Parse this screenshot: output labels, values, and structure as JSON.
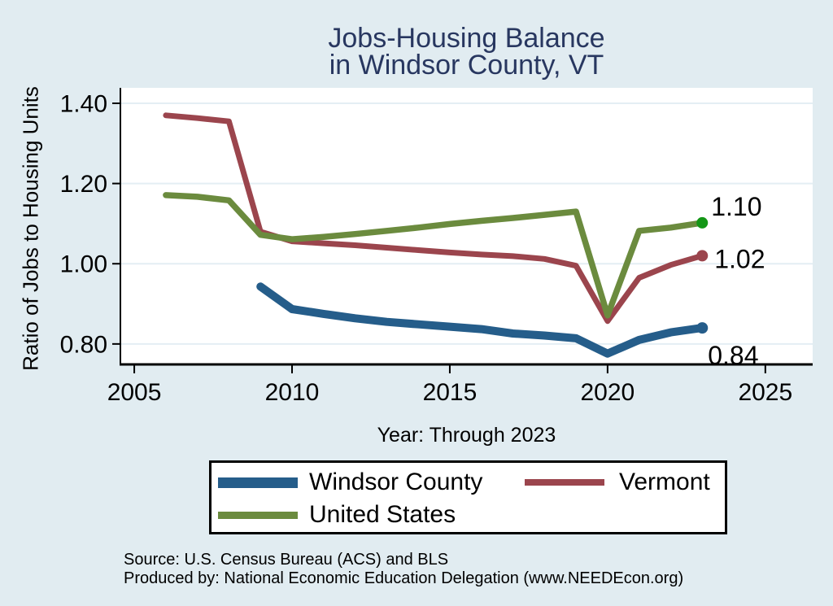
{
  "title": {
    "line1": "Jobs-Housing Balance",
    "line2": "in Windsor County, VT"
  },
  "colors": {
    "figure_bg": "#e1ecf1",
    "plot_bg": "#ffffff",
    "grid": "#e4eef4",
    "axis": "#000000",
    "title": "#283760"
  },
  "chart_data": {
    "type": "line",
    "title": "Jobs-Housing Balance in Windsor County, VT",
    "xlabel": "Year: Through 2023",
    "ylabel": "Ratio of Jobs to Housing Units",
    "xlim": [
      2004.56,
      2026.5
    ],
    "ylim": [
      0.749,
      1.4385
    ],
    "x_ticks": [
      2005,
      2010,
      2015,
      2020,
      2025
    ],
    "x_tick_labels": [
      "2005",
      "2010",
      "2015",
      "2020",
      "2025"
    ],
    "y_ticks": [
      0.8,
      1.0,
      1.2,
      1.4
    ],
    "y_tick_labels": [
      "0.80",
      "1.00",
      "1.20",
      "1.40"
    ],
    "grid": true,
    "legend_position": "bottom",
    "series": [
      {
        "name": "Windsor County",
        "color": "#255d8a",
        "line_width": 10,
        "marker_color": "#255d8a",
        "end_label": {
          "text": "0.84",
          "dx": 7,
          "dy": 45
        },
        "x": [
          2009,
          2010,
          2011,
          2012,
          2013,
          2014,
          2015,
          2016,
          2017,
          2018,
          2019,
          2020,
          2021,
          2022,
          2023
        ],
        "y": [
          0.943,
          0.887,
          0.875,
          0.864,
          0.855,
          0.849,
          0.843,
          0.837,
          0.826,
          0.821,
          0.814,
          0.776,
          0.81,
          0.829,
          0.84
        ]
      },
      {
        "name": "Vermont",
        "color": "#9b454d",
        "line_width": 7,
        "marker_color": "#9b454d",
        "end_label": {
          "text": "1.02",
          "dx": 15,
          "dy": 15
        },
        "x": [
          2006,
          2007,
          2008,
          2009,
          2010,
          2011,
          2012,
          2013,
          2014,
          2015,
          2016,
          2017,
          2018,
          2019,
          2020,
          2021,
          2022,
          2023
        ],
        "y": [
          1.37,
          1.363,
          1.355,
          1.08,
          1.056,
          1.051,
          1.046,
          1.04,
          1.034,
          1.028,
          1.023,
          1.019,
          1.012,
          0.995,
          0.857,
          0.965,
          0.997,
          1.02
        ]
      },
      {
        "name": "United States",
        "color": "#6b8b3e",
        "line_width": 7.5,
        "marker_color": "#149616",
        "end_label": {
          "text": "1.10",
          "dx": 11,
          "dy": -9
        },
        "x": [
          2006,
          2007,
          2008,
          2009,
          2010,
          2011,
          2012,
          2013,
          2014,
          2015,
          2016,
          2017,
          2018,
          2019,
          2020,
          2021,
          2022,
          2023
        ],
        "y": [
          1.171,
          1.167,
          1.158,
          1.072,
          1.061,
          1.067,
          1.074,
          1.082,
          1.09,
          1.099,
          1.107,
          1.114,
          1.122,
          1.13,
          0.871,
          1.082,
          1.09,
          1.102
        ]
      }
    ]
  },
  "legend": {
    "items": [
      {
        "label": "Windsor County",
        "color": "#255d8a",
        "swatch_h": 13
      },
      {
        "label": "Vermont",
        "color": "#9b454d",
        "swatch_h": 8
      },
      {
        "label": "United States",
        "color": "#6b8b3e",
        "swatch_h": 9
      }
    ]
  },
  "source": {
    "line1": "Source: U.S. Census Bureau (ACS) and BLS",
    "line2": "Produced by: National Economic Education Delegation (www.NEEDEcon.org)"
  }
}
